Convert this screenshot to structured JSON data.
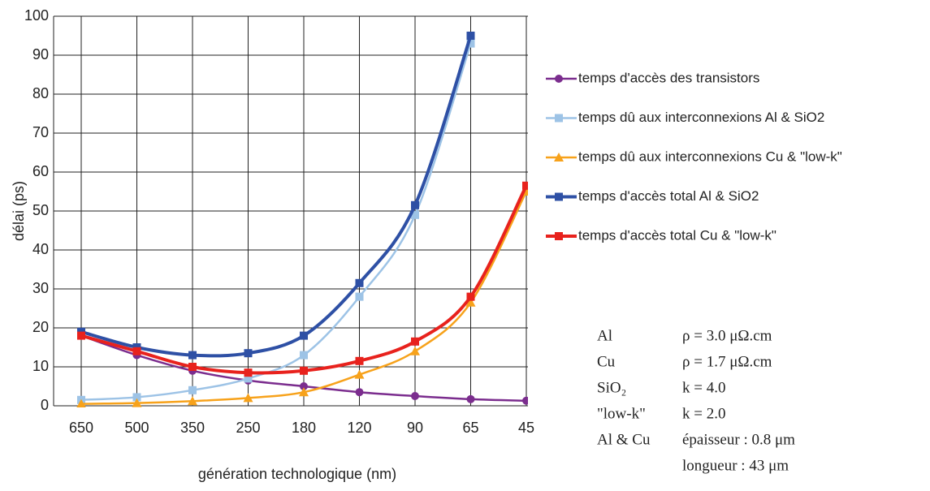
{
  "chart_data": {
    "type": "line",
    "xlabel": "génération technologique (nm)",
    "ylabel": "délai (ps)",
    "categories": [
      "650",
      "500",
      "350",
      "250",
      "180",
      "120",
      "90",
      "65",
      "45"
    ],
    "ylim": [
      0,
      100
    ],
    "yticks": [
      0,
      10,
      20,
      30,
      40,
      50,
      60,
      70,
      80,
      90,
      100
    ],
    "grid": true,
    "legend": "right",
    "series": [
      {
        "name": "temps d'accès des transistors",
        "color": "#7b2d8e",
        "marker": "circle",
        "values": [
          18,
          13,
          9,
          6.5,
          5,
          3.5,
          2.5,
          1.7,
          1.3
        ]
      },
      {
        "name": "temps dû aux interconnexions Al & SiO2",
        "color": "#9dc3e6",
        "marker": "square",
        "values": [
          1.5,
          2.2,
          4,
          7,
          13,
          28,
          49,
          93,
          null
        ]
      },
      {
        "name": "temps dû aux interconnexions Cu & \"low-k\"",
        "color": "#f7a21b",
        "marker": "triangle",
        "values": [
          0.5,
          0.7,
          1.2,
          2,
          3.5,
          8,
          14,
          26.5,
          55
        ]
      },
      {
        "name": "temps d'accès total Al & SiO2",
        "color": "#2e50a5",
        "marker": "square",
        "values": [
          19,
          15,
          13,
          13.5,
          18,
          31.5,
          51.5,
          95,
          null
        ]
      },
      {
        "name": "temps d'accès total Cu & \"low-k\"",
        "color": "#e8221d",
        "marker": "square",
        "values": [
          18,
          14,
          10,
          8.5,
          9,
          11.5,
          16.5,
          28,
          56.5
        ]
      }
    ],
    "annotations": [
      [
        "Al",
        "ρ = 3.0 μΩ.cm"
      ],
      [
        "Cu",
        "ρ = 1.7 μΩ.cm"
      ],
      [
        "SiO₂",
        "k = 4.0"
      ],
      [
        "\"low-k\"",
        "k = 2.0"
      ],
      [
        "Al & Cu",
        "épaisseur : 0.8 μm"
      ],
      [
        "",
        "longueur : 43 μm"
      ]
    ]
  }
}
